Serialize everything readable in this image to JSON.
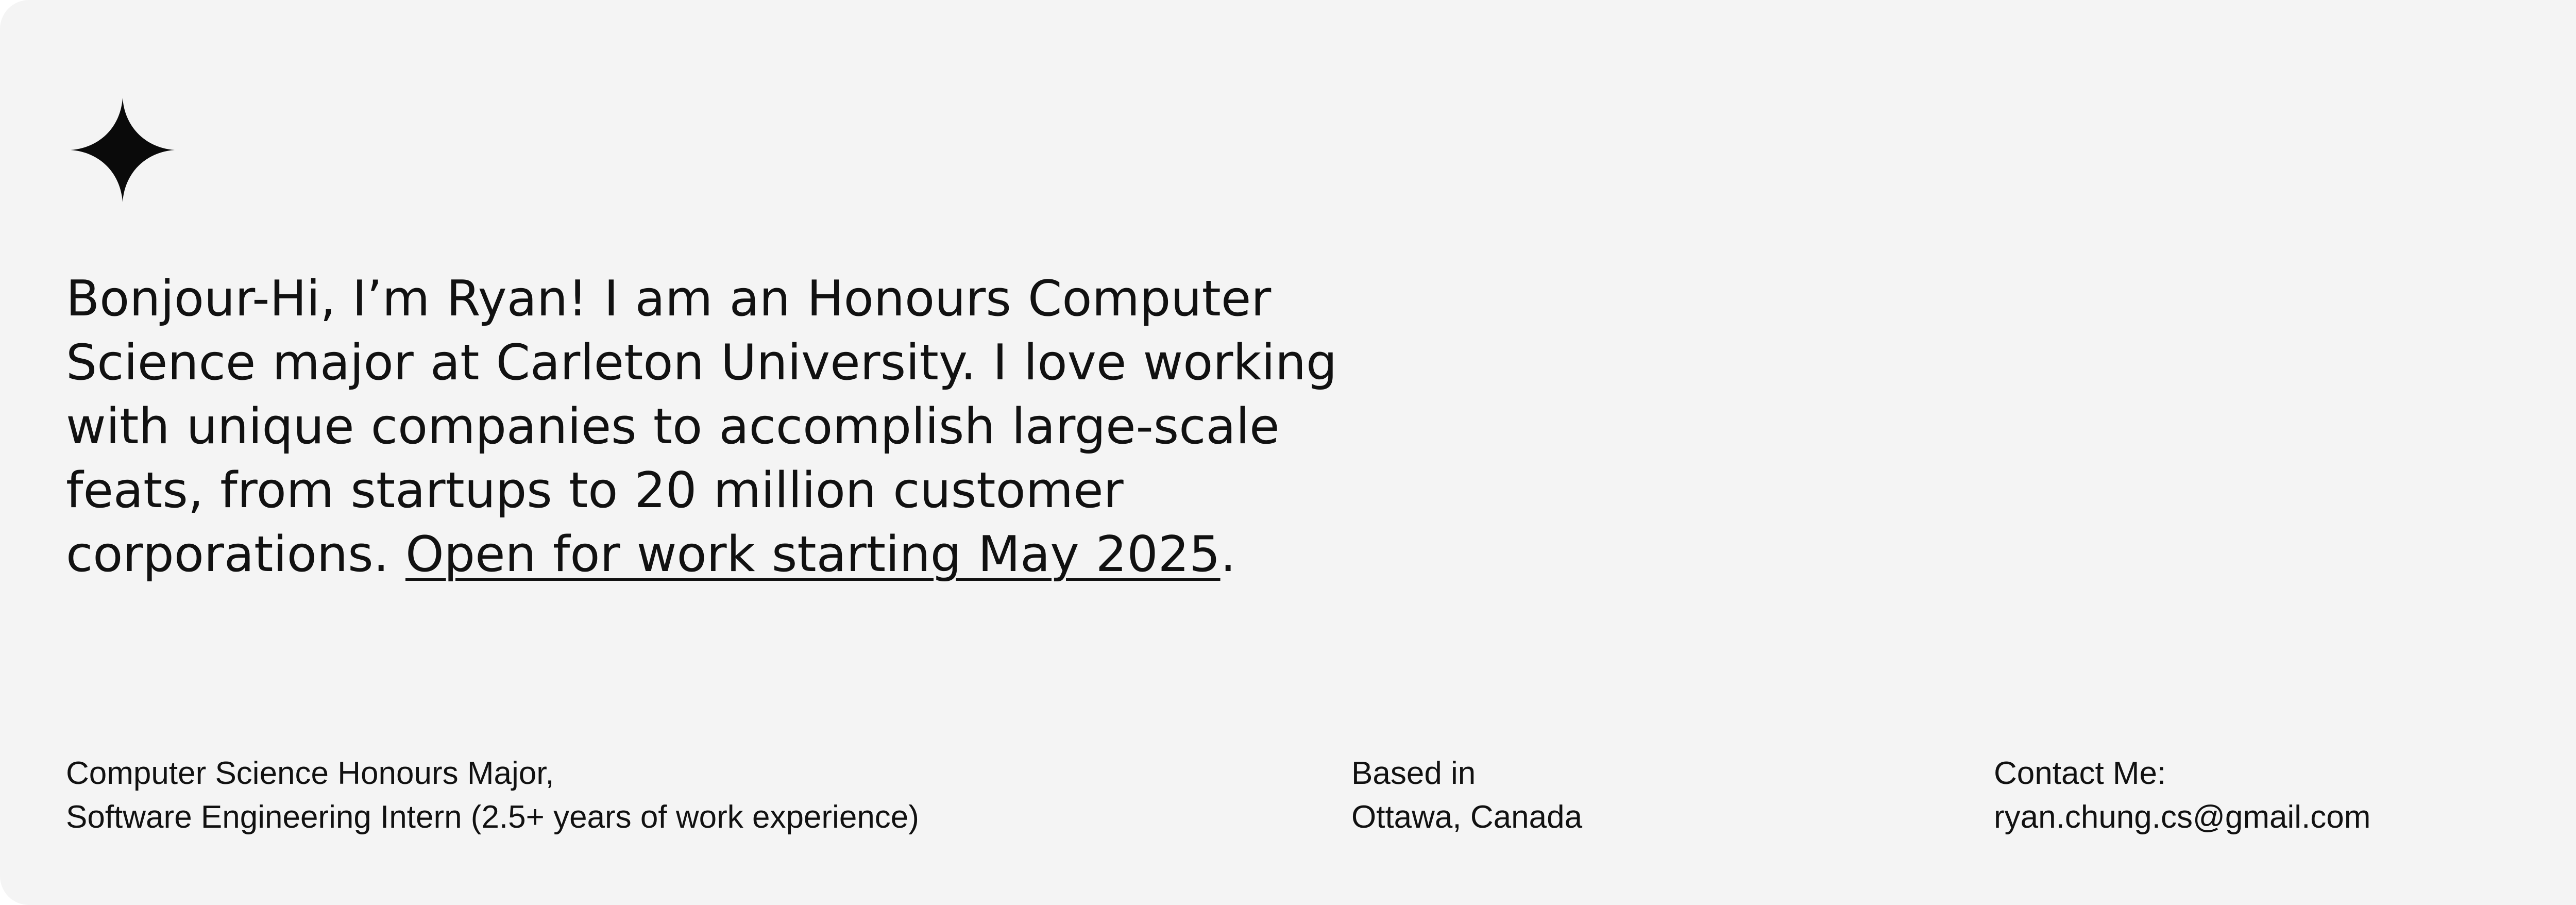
{
  "hero": {
    "icon": "four-point-star-icon",
    "intro_text": "Bonjour-Hi, I’m Ryan! I am an Honours Computer Science major at Carleton University. I love working with unique companies to accomplish large-scale feats, from startups to 20 million customer corporations. ",
    "availability_link": "Open for work starting May 2025",
    "trailing_period": "."
  },
  "info": {
    "role_line1": "Computer Science Honours Major,",
    "role_line2": "Software Engineering Intern (2.5+ years of work experience)",
    "location_label": "Based in",
    "location_value": "Ottawa, Canada",
    "contact_label": "Contact Me:",
    "contact_email": "ryan.chung.cs@gmail.com"
  },
  "colors": {
    "background": "#f4f4f4",
    "text": "#111111"
  }
}
